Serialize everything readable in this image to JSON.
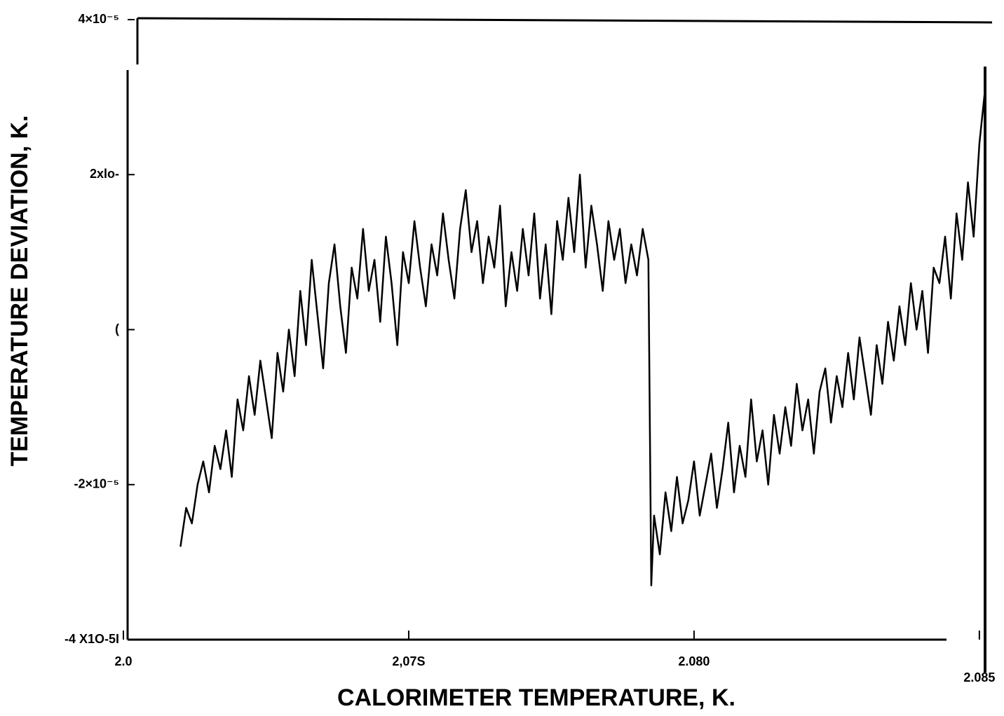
{
  "chart_data": {
    "type": "line",
    "x_label": "CALORIMETER TEMPERATURE, K.",
    "y_label": "TEMPERATURE DEVIATION, K.",
    "xlim": [
      2.07,
      2.0851
    ],
    "ylim": [
      -4e-05,
      4e-05
    ],
    "xticks": [
      {
        "value": 2.07,
        "label": "2.0"
      },
      {
        "value": 2.075,
        "label": "2,07S"
      },
      {
        "value": 2.08,
        "label": "2.080"
      },
      {
        "value": 2.085,
        "label": "2.085"
      }
    ],
    "yticks": [
      {
        "value": 4e-05,
        "label": "4×10⁻⁵"
      },
      {
        "value": 2e-05,
        "label": "2xlo-"
      },
      {
        "value": 0,
        "label": "("
      },
      {
        "value": -2e-05,
        "label": "-2×10⁻⁵"
      },
      {
        "value": -4e-05,
        "label": "-4 X1O-5I"
      }
    ],
    "grid": false,
    "series": [
      {
        "color": "#000000",
        "x": [
          2.071,
          2.0711,
          2.0712,
          2.0713,
          2.0714,
          2.0715,
          2.0716,
          2.0717,
          2.0718,
          2.0719,
          2.072,
          2.0721,
          2.0722,
          2.0723,
          2.0724,
          2.0725,
          2.0726,
          2.0727,
          2.0728,
          2.0729,
          2.073,
          2.0731,
          2.0732,
          2.0733,
          2.0734,
          2.0735,
          2.0736,
          2.0737,
          2.0738,
          2.0739,
          2.074,
          2.0741,
          2.0742,
          2.0743,
          2.0744,
          2.0745,
          2.0746,
          2.0747,
          2.0748,
          2.0749,
          2.075,
          2.0751,
          2.0752,
          2.0753,
          2.0754,
          2.0755,
          2.0756,
          2.0757,
          2.0758,
          2.0759,
          2.076,
          2.0761,
          2.0762,
          2.0763,
          2.0764,
          2.0765,
          2.0766,
          2.0767,
          2.0768,
          2.0769,
          2.077,
          2.0771,
          2.0772,
          2.0773,
          2.0774,
          2.0775,
          2.0776,
          2.0777,
          2.0778,
          2.0779,
          2.078,
          2.0781,
          2.0782,
          2.0783,
          2.0784,
          2.0785,
          2.0786,
          2.0787,
          2.0788,
          2.0789,
          2.079,
          2.0791,
          2.0792,
          2.07925,
          2.0793,
          2.0794,
          2.0795,
          2.0796,
          2.0797,
          2.0798,
          2.0799,
          2.08,
          2.0801,
          2.0802,
          2.0803,
          2.0804,
          2.0805,
          2.0806,
          2.0807,
          2.0808,
          2.0809,
          2.081,
          2.0811,
          2.0812,
          2.0813,
          2.0814,
          2.0815,
          2.0816,
          2.0817,
          2.0818,
          2.0819,
          2.082,
          2.0821,
          2.0822,
          2.0823,
          2.0824,
          2.0825,
          2.0826,
          2.0827,
          2.0828,
          2.0829,
          2.083,
          2.0831,
          2.0832,
          2.0833,
          2.0834,
          2.0835,
          2.0836,
          2.0837,
          2.0838,
          2.0839,
          2.084,
          2.0841,
          2.0842,
          2.0843,
          2.0844,
          2.0845,
          2.0846,
          2.0847,
          2.0848,
          2.0849,
          2.085,
          2.0851
        ],
        "values": [
          -2.8e-05,
          -2.3e-05,
          -2.5e-05,
          -2e-05,
          -1.7e-05,
          -2.1e-05,
          -1.5e-05,
          -1.8e-05,
          -1.3e-05,
          -1.9e-05,
          -9e-06,
          -1.3e-05,
          -6e-06,
          -1.1e-05,
          -4e-06,
          -9e-06,
          -1.4e-05,
          -3e-06,
          -8e-06,
          0,
          -6e-06,
          5e-06,
          -2e-06,
          9e-06,
          2e-06,
          -5e-06,
          6e-06,
          1.1e-05,
          3e-06,
          -3e-06,
          8e-06,
          4e-06,
          1.3e-05,
          5e-06,
          9e-06,
          1e-06,
          1.2e-05,
          6e-06,
          -2e-06,
          1e-05,
          6e-06,
          1.4e-05,
          8e-06,
          3e-06,
          1.1e-05,
          7e-06,
          1.5e-05,
          9e-06,
          4e-06,
          1.3e-05,
          1.8e-05,
          1e-05,
          1.4e-05,
          6e-06,
          1.2e-05,
          8e-06,
          1.6e-05,
          3e-06,
          1e-05,
          5e-06,
          1.3e-05,
          7e-06,
          1.5e-05,
          4e-06,
          1.1e-05,
          2e-06,
          1.4e-05,
          9e-06,
          1.7e-05,
          1e-05,
          2e-05,
          8e-06,
          1.6e-05,
          1.1e-05,
          5e-06,
          1.4e-05,
          9e-06,
          1.3e-05,
          6e-06,
          1.1e-05,
          7e-06,
          1.3e-05,
          9e-06,
          -3.3e-05,
          -2.4e-05,
          -2.9e-05,
          -2.1e-05,
          -2.6e-05,
          -1.9e-05,
          -2.5e-05,
          -2.2e-05,
          -1.7e-05,
          -2.4e-05,
          -2e-05,
          -1.6e-05,
          -2.3e-05,
          -1.8e-05,
          -1.2e-05,
          -2.1e-05,
          -1.5e-05,
          -1.9e-05,
          -9e-06,
          -1.7e-05,
          -1.3e-05,
          -2e-05,
          -1.1e-05,
          -1.6e-05,
          -1e-05,
          -1.5e-05,
          -7e-06,
          -1.3e-05,
          -9e-06,
          -1.6e-05,
          -8e-06,
          -5e-06,
          -1.2e-05,
          -6e-06,
          -1e-05,
          -3e-06,
          -9e-06,
          -1e-06,
          -6e-06,
          -1.1e-05,
          -2e-06,
          -7e-06,
          1e-06,
          -4e-06,
          3e-06,
          -2e-06,
          6e-06,
          0,
          5e-06,
          -3e-06,
          8e-06,
          6e-06,
          1.2e-05,
          4e-06,
          1.5e-05,
          9e-06,
          1.9e-05,
          1.2e-05,
          2.4e-05,
          3.1e-05
        ]
      }
    ]
  }
}
